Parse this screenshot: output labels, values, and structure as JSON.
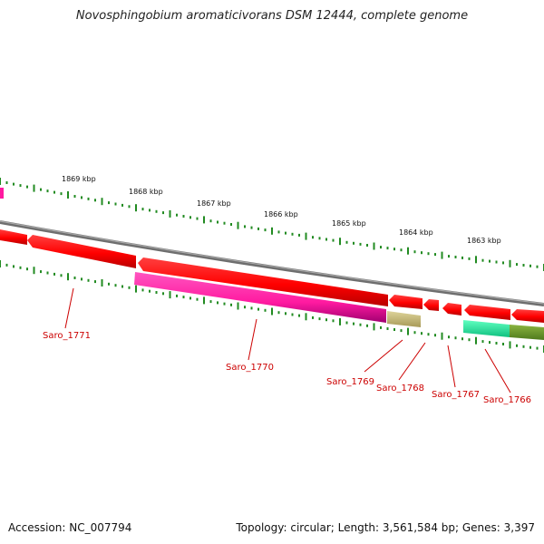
{
  "title": "Novosphingobium aromaticivorans DSM 12444, complete genome",
  "footer": {
    "accession": "Accession: NC_007794",
    "stats": "Topology: circular; Length: 3,561,584 bp; Genes: 3,397"
  },
  "scale_labels": [
    "1869 kbp",
    "1868 kbp",
    "1867 kbp",
    "1866 kbp",
    "1865 kbp",
    "1864 kbp",
    "1863 kbp"
  ],
  "gene_labels": [
    "Saro_1771",
    "Saro_1770",
    "Saro_1769",
    "Saro_1768",
    "Saro_1767",
    "Saro_1766"
  ],
  "colors": {
    "cds_forward": "#ff0000",
    "backbone": "#808080",
    "ticks": "#228b22",
    "saro_1770": "#ff1aa0",
    "saro_1769": "#c8bc78",
    "saro_1766_a": "#22f0a0",
    "saro_1766_b": "#6b9a2a",
    "label": "#cc0000"
  }
}
